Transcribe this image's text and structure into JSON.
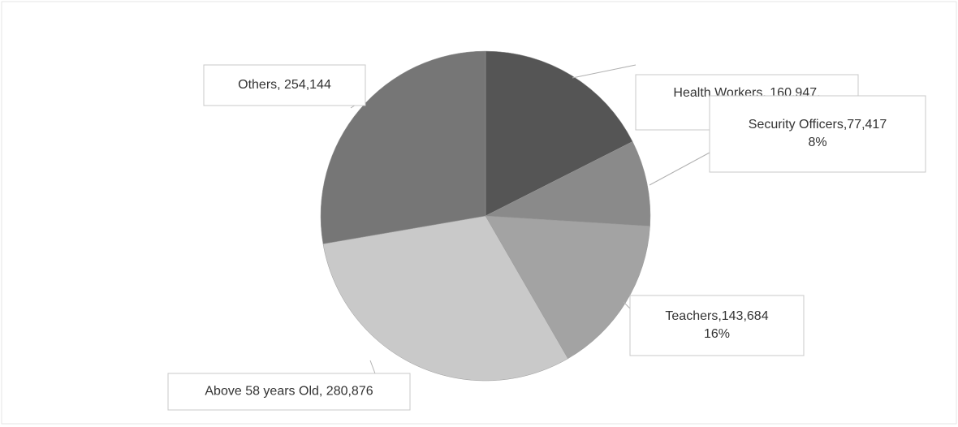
{
  "chart_data": {
    "type": "pie",
    "values": [
      160947,
      77417,
      143684,
      280876,
      254144
    ],
    "value_labels": [
      [
        "Health Workers, 160,947,",
        "18%"
      ],
      [
        "Security Officers,77,417",
        "8%"
      ],
      [
        "Teachers,143,684",
        "16%"
      ],
      [
        "Above 58 years Old, 280,876"
      ],
      [
        "Others, 254,144"
      ]
    ],
    "colors": [
      "#555555",
      "#8a8a8a",
      "#a3a3a3",
      "#c9c9c9",
      "#767676"
    ]
  }
}
